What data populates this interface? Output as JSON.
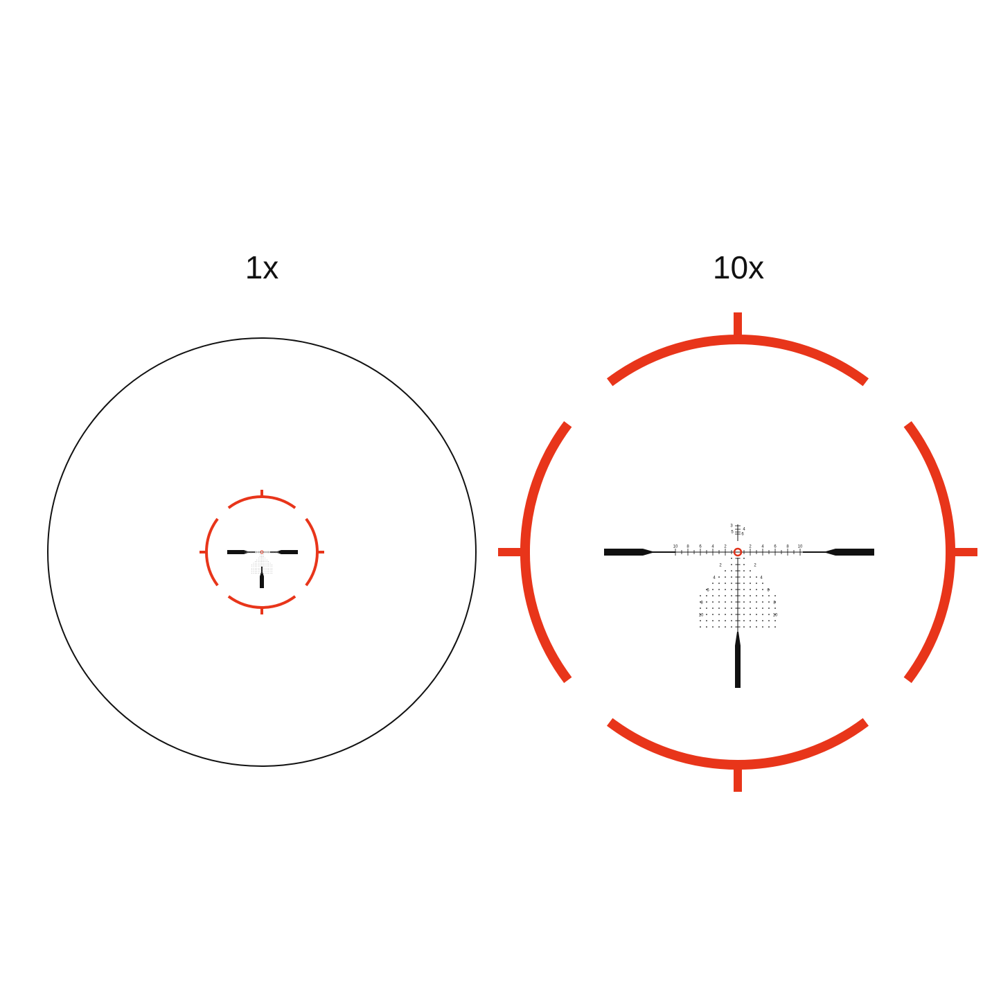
{
  "views": [
    {
      "label": "1x"
    },
    {
      "label": "10x",
      "reticle": {
        "windage_left": [
          10,
          8,
          6,
          4,
          2
        ],
        "windage_right": [
          2,
          4,
          6,
          8,
          10
        ],
        "stadia_top": [
          3,
          4,
          5,
          6
        ],
        "tree_left": [
          2,
          4,
          6,
          8,
          10
        ],
        "tree_right": [
          2,
          4,
          6,
          8,
          10
        ]
      }
    }
  ]
}
